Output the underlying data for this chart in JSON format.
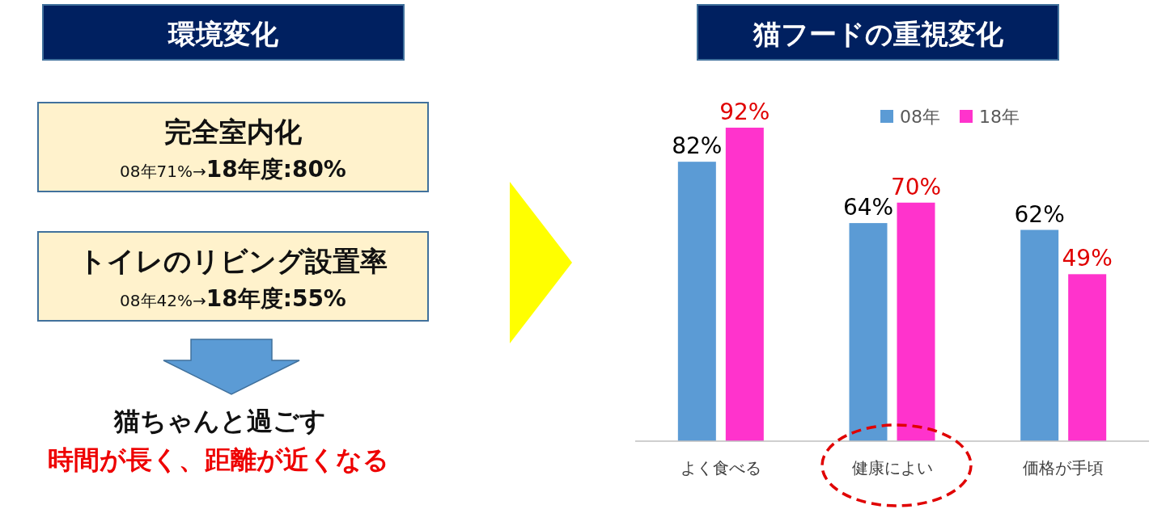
{
  "chart_data": [
    {
      "type": "other",
      "title": "環境変化",
      "annotations": [
        "完全室内化",
        "08年71%→",
        "18年度:80%",
        "トイレのリビング設置率",
        "08年42%→",
        "18年度:55%",
        "猫ちゃんと過ごす",
        "時間が長く、距離が近くなる"
      ]
    },
    {
      "type": "bar",
      "title": "猫フードの重視変化",
      "categories": [
        "よく食べる",
        "健康によい",
        "価格が手頃"
      ],
      "series": [
        {
          "name": "08年",
          "color": "#5b9bd5",
          "values": [
            82,
            64,
            62
          ],
          "value_labels": [
            "82%",
            "64%",
            "62%"
          ]
        },
        {
          "name": "18年",
          "color": "#ff33cc",
          "values": [
            92,
            70,
            49
          ],
          "value_labels": [
            "92%",
            "70%",
            "49%"
          ]
        }
      ],
      "legend": "top"
    }
  ]
}
